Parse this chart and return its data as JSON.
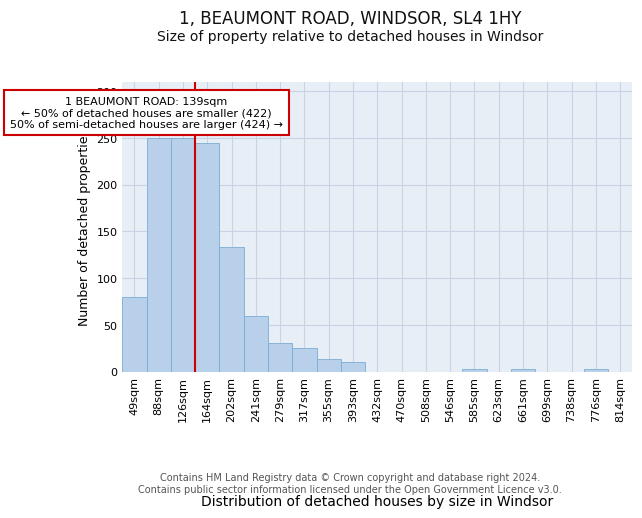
{
  "title1": "1, BEAUMONT ROAD, WINDSOR, SL4 1HY",
  "title2": "Size of property relative to detached houses in Windsor",
  "xlabel": "Distribution of detached houses by size in Windsor",
  "ylabel": "Number of detached properties",
  "categories": [
    "49sqm",
    "88sqm",
    "126sqm",
    "164sqm",
    "202sqm",
    "241sqm",
    "279sqm",
    "317sqm",
    "355sqm",
    "393sqm",
    "432sqm",
    "470sqm",
    "508sqm",
    "546sqm",
    "585sqm",
    "623sqm",
    "661sqm",
    "699sqm",
    "738sqm",
    "776sqm",
    "814sqm"
  ],
  "values": [
    80,
    250,
    250,
    245,
    133,
    60,
    31,
    25,
    14,
    11,
    0,
    0,
    0,
    0,
    3,
    0,
    3,
    0,
    0,
    3,
    0
  ],
  "bar_color": "#b8d0ea",
  "bar_edge_color": "#7aadd4",
  "grid_color": "#c8d4e4",
  "background_color": "#e8eef6",
  "vline_x": 2.5,
  "vline_color": "#cc0000",
  "annotation_text": "1 BEAUMONT ROAD: 139sqm\n← 50% of detached houses are smaller (422)\n50% of semi-detached houses are larger (424) →",
  "annotation_box_color": "#ffffff",
  "annotation_box_edge": "#cc0000",
  "ylim": [
    0,
    310
  ],
  "yticks": [
    0,
    50,
    100,
    150,
    200,
    250,
    300
  ],
  "footer_text": "Contains HM Land Registry data © Crown copyright and database right 2024.\nContains public sector information licensed under the Open Government Licence v3.0.",
  "title1_fontsize": 12,
  "title2_fontsize": 10,
  "xlabel_fontsize": 10,
  "ylabel_fontsize": 9,
  "tick_fontsize": 8,
  "annotation_fontsize": 8,
  "footer_fontsize": 7
}
